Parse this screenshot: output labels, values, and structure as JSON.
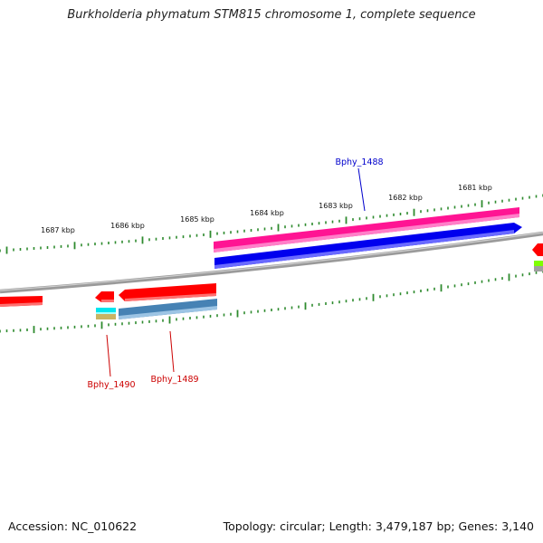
{
  "title": "Burkholderia phymatum STM815 chromosome 1, complete sequence",
  "footer": {
    "accession": "Accession: NC_010622",
    "topology": "Topology: circular; Length: 3,479,187 bp; Genes: 3,140"
  },
  "ruler_labels": [
    "1687 kbp",
    "1686 kbp",
    "1685 kbp",
    "1684 kbp",
    "1683 kbp",
    "1682 kbp",
    "1681 kbp"
  ],
  "gene_labels": [
    {
      "text": "Bphy_1488",
      "color": "#0000cc"
    },
    {
      "text": "Bphy_1490",
      "color": "#cc0000"
    },
    {
      "text": "Bphy_1489",
      "color": "#cc0000"
    }
  ],
  "colors": {
    "backbone": "#808080",
    "tick": "#2e8b2e",
    "forward_cds": "#ff1493",
    "forward_gene": "#0000ee",
    "reverse_cds": "#ff0000",
    "reverse_gene": "#4682b4",
    "cyan_feature": "#00e5ee",
    "khaki_feature": "#c8b464",
    "lime_feature": "#7fff00"
  }
}
